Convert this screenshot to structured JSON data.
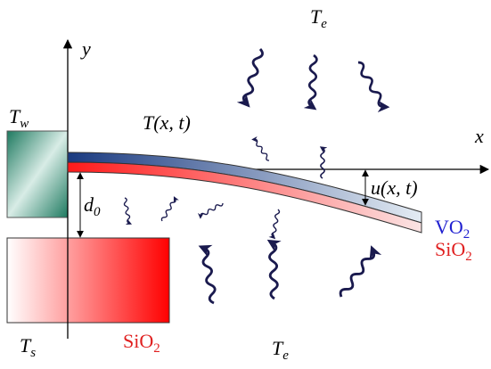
{
  "axes": {
    "y": "y",
    "x": "x"
  },
  "labels": {
    "wall_temp": {
      "base": "T",
      "sub": "w"
    },
    "beam_temp": "T(x, t)",
    "env_temp_top": {
      "base": "T",
      "sub": "e"
    },
    "gap": {
      "base": "d",
      "sub": "0"
    },
    "deflection": "u(x, t)",
    "layer_top": {
      "base": "VO",
      "sub": "2"
    },
    "layer_bottom": {
      "base": "SiO",
      "sub": "2"
    },
    "substrate_temp": {
      "base": "T",
      "sub": "s"
    },
    "substrate_material": {
      "base": "SiO",
      "sub": "2"
    },
    "env_temp_bottom": {
      "base": "T",
      "sub": "e"
    }
  }
}
